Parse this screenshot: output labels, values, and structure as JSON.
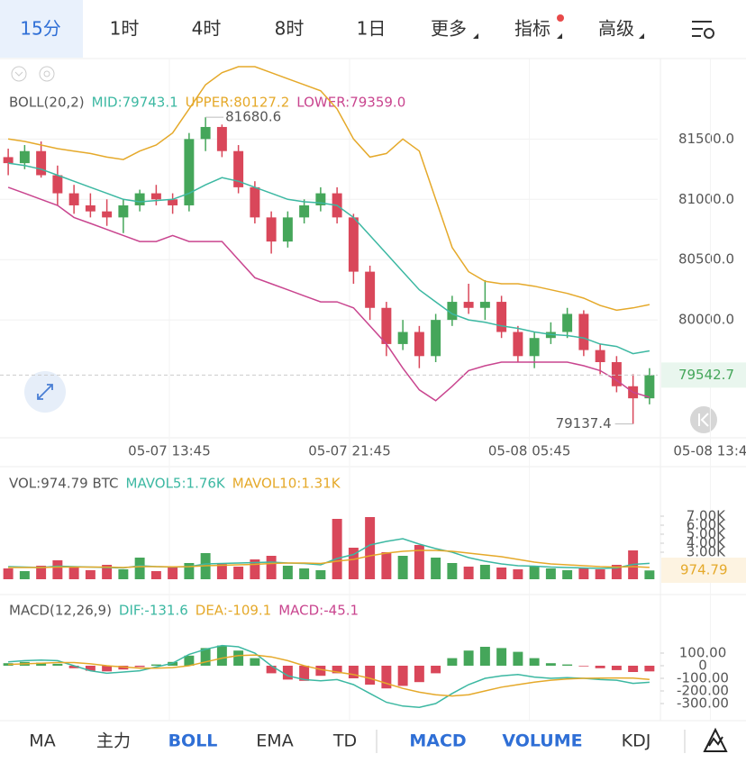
{
  "top_tabs": {
    "items": [
      "15分",
      "1时",
      "4时",
      "8时",
      "1日",
      "更多",
      "指标",
      "高级"
    ],
    "active": 0
  },
  "bottom_tabs": {
    "items": [
      "MA",
      "主力",
      "BOLL",
      "EMA",
      "TD",
      "MACD",
      "VOLUME",
      "KDJ"
    ],
    "active": [
      2,
      5,
      6
    ]
  },
  "chart_data": [
    {
      "type": "candlestick",
      "title": "BOLL(20,2)",
      "up_color": "#45a65a",
      "down_color": "#d9475a",
      "grid": true,
      "ylim": [
        79030,
        82130
      ],
      "yticks": [
        {
          "value": 80000,
          "label": "80000.0"
        },
        {
          "value": 80500,
          "label": "80500.0"
        },
        {
          "value": 81000,
          "label": "81000.0"
        },
        {
          "value": 81500,
          "label": "81500.0"
        }
      ],
      "xticks": [
        {
          "value": 9.8,
          "label": "05-07 13:45"
        },
        {
          "value": 20.76,
          "label": "05-07 21:45"
        },
        {
          "value": 31.7,
          "label": "05-08 05:45"
        },
        {
          "value": 42.7,
          "label": "05-08 13:4"
        }
      ],
      "candles": [
        [
          81350,
          81420,
          81200,
          81300
        ],
        [
          81300,
          81450,
          81250,
          81400
        ],
        [
          81400,
          81480,
          81180,
          81200
        ],
        [
          81200,
          81280,
          80950,
          81050
        ],
        [
          81050,
          81120,
          80880,
          80950
        ],
        [
          80950,
          81050,
          80850,
          80900
        ],
        [
          80900,
          81000,
          80780,
          80850
        ],
        [
          80850,
          81000,
          80720,
          80950
        ],
        [
          80950,
          81080,
          80900,
          81050
        ],
        [
          81050,
          81120,
          80950,
          81000
        ],
        [
          81000,
          81050,
          80880,
          80950
        ],
        [
          80950,
          81550,
          80900,
          81500
        ],
        [
          81500,
          81680.6,
          81400,
          81600
        ],
        [
          81600,
          81620,
          81350,
          81400
        ],
        [
          81400,
          81450,
          81050,
          81100
        ],
        [
          81100,
          81150,
          80800,
          80850
        ],
        [
          80850,
          80900,
          80550,
          80650
        ],
        [
          80650,
          80900,
          80600,
          80850
        ],
        [
          80850,
          81000,
          80800,
          80950
        ],
        [
          80950,
          81100,
          80900,
          81050
        ],
        [
          81050,
          81100,
          80800,
          80850
        ],
        [
          80850,
          80880,
          80300,
          80400
        ],
        [
          80400,
          80450,
          80000,
          80100
        ],
        [
          80100,
          80150,
          79700,
          79800
        ],
        [
          79800,
          80000,
          79750,
          79900
        ],
        [
          79900,
          79950,
          79600,
          79700
        ],
        [
          79700,
          80050,
          79650,
          80000
        ],
        [
          80000,
          80200,
          79950,
          80150
        ],
        [
          80150,
          80300,
          80050,
          80100
        ],
        [
          80100,
          80330,
          80000,
          80150
        ],
        [
          80150,
          80200,
          79850,
          79900
        ],
        [
          79900,
          79950,
          79650,
          79700
        ],
        [
          79700,
          79900,
          79600,
          79850
        ],
        [
          79850,
          79980,
          79800,
          79900
        ],
        [
          79900,
          80100,
          79850,
          80050
        ],
        [
          80050,
          80080,
          79700,
          79750
        ],
        [
          79750,
          79800,
          79550,
          79650
        ],
        [
          79650,
          79700,
          79400,
          79450
        ],
        [
          79450,
          79550,
          79137.4,
          79350
        ],
        [
          79350,
          79600,
          79300,
          79542.7
        ]
      ],
      "series": [
        {
          "name": "MID:79743.1",
          "color": "#3cb8a2",
          "values": [
            81300,
            81280,
            81250,
            81200,
            81150,
            81100,
            81050,
            81000,
            80980,
            80990,
            81000,
            81050,
            81120,
            81180,
            81150,
            81100,
            81050,
            81000,
            80980,
            80970,
            80950,
            80850,
            80700,
            80550,
            80400,
            80250,
            80150,
            80050,
            80000,
            79980,
            79950,
            79930,
            79900,
            79880,
            79870,
            79850,
            79800,
            79780,
            79720,
            79743.1
          ]
        },
        {
          "name": "UPPER:80127.2",
          "color": "#e5a92a",
          "values": [
            81500,
            81480,
            81450,
            81420,
            81400,
            81380,
            81350,
            81330,
            81400,
            81450,
            81550,
            81750,
            81950,
            82050,
            82100,
            82100,
            82050,
            82000,
            81950,
            81900,
            81750,
            81500,
            81350,
            81380,
            81500,
            81400,
            81000,
            80600,
            80400,
            80320,
            80300,
            80300,
            80280,
            80250,
            80220,
            80180,
            80120,
            80080,
            80100,
            80127.2
          ]
        },
        {
          "name": "LOWER:79359.0",
          "color": "#c9458f",
          "values": [
            81100,
            81050,
            81000,
            80950,
            80850,
            80800,
            80750,
            80700,
            80650,
            80650,
            80700,
            80650,
            80650,
            80650,
            80500,
            80350,
            80300,
            80250,
            80200,
            80150,
            80150,
            80100,
            79950,
            79800,
            79600,
            79420,
            79330,
            79450,
            79580,
            79620,
            79650,
            79650,
            79650,
            79650,
            79650,
            79620,
            79580,
            79500,
            79400,
            79359
          ]
        }
      ]
    },
    {
      "type": "bar",
      "title": "VOL:974.79 BTC",
      "ylim": [
        0,
        8000
      ],
      "yticks": [
        {
          "value": 3000,
          "label": "3.00K"
        },
        {
          "value": 4000,
          "label": "4.00K"
        },
        {
          "value": 5000,
          "label": "5.00K"
        },
        {
          "value": 6000,
          "label": "6.00K"
        },
        {
          "value": 7000,
          "label": "7.00K"
        }
      ],
      "values": [
        1200,
        900,
        1500,
        2100,
        1300,
        1000,
        1600,
        1100,
        2400,
        900,
        1300,
        1800,
        2900,
        1700,
        1400,
        2200,
        2600,
        1500,
        1200,
        1000,
        6700,
        3500,
        6900,
        3000,
        2600,
        3800,
        2400,
        1800,
        1400,
        1600,
        1300,
        1100,
        1500,
        1200,
        1000,
        1300,
        1100,
        1600,
        3200,
        974.79
      ],
      "series": [
        {
          "name": "MAVOL5:1.76K",
          "color": "#3cb8a2",
          "values": [
            1400,
            1350,
            1300,
            1450,
            1400,
            1350,
            1300,
            1250,
            1500,
            1400,
            1350,
            1400,
            1700,
            1750,
            1800,
            1850,
            1900,
            1800,
            1750,
            1600,
            2300,
            2750,
            3800,
            4200,
            4500,
            3900,
            3400,
            3000,
            2400,
            2000,
            1700,
            1500,
            1450,
            1350,
            1300,
            1250,
            1200,
            1250,
            1650,
            1760
          ]
        },
        {
          "name": "MAVOL10:1.31K",
          "color": "#e5a92a",
          "values": [
            1300,
            1300,
            1300,
            1350,
            1350,
            1350,
            1350,
            1300,
            1400,
            1400,
            1380,
            1400,
            1500,
            1550,
            1600,
            1650,
            1750,
            1800,
            1800,
            1750,
            2000,
            2200,
            2600,
            2900,
            3100,
            3200,
            3200,
            3100,
            2900,
            2700,
            2500,
            2200,
            1900,
            1700,
            1600,
            1500,
            1400,
            1350,
            1400,
            1310
          ]
        }
      ]
    },
    {
      "type": "bar",
      "title": "MACD(12,26,9)",
      "ylim": [
        -400,
        350
      ],
      "yticks": [
        {
          "value": 100,
          "label": "100.00"
        },
        0,
        {
          "value": -100,
          "label": "-100.00"
        },
        {
          "value": -200,
          "label": "-200.00"
        },
        {
          "value": -300,
          "label": "-300.00"
        }
      ],
      "series": [
        {
          "name": "DIF:-131.6",
          "color": "#3cb8a2",
          "values": [
            30,
            40,
            45,
            40,
            0,
            -40,
            -60,
            -50,
            -40,
            -10,
            20,
            90,
            130,
            160,
            150,
            100,
            0,
            -80,
            -110,
            -120,
            -110,
            -150,
            -220,
            -290,
            -320,
            -330,
            -300,
            -220,
            -150,
            -100,
            -80,
            -70,
            -90,
            -100,
            -95,
            -100,
            -110,
            -115,
            -140,
            -131.6
          ]
        },
        {
          "name": "DEA:-109.1",
          "color": "#e5a92a",
          "values": [
            10,
            15,
            20,
            25,
            25,
            15,
            0,
            -10,
            -20,
            -20,
            -15,
            0,
            30,
            60,
            80,
            85,
            70,
            40,
            0,
            -30,
            -50,
            -70,
            -100,
            -140,
            -180,
            -210,
            -230,
            -240,
            -230,
            -200,
            -170,
            -150,
            -130,
            -115,
            -105,
            -100,
            -98,
            -97,
            -98,
            -109.1
          ]
        },
        {
          "name": "MACD:-45.1",
          "color": "#c9458f",
          "type": "bar",
          "up_color": "#45a65a",
          "down_color": "#d9475a",
          "values": [
            20,
            30,
            25,
            15,
            -20,
            -40,
            -45,
            -30,
            -10,
            10,
            30,
            80,
            140,
            160,
            120,
            60,
            -60,
            -110,
            -120,
            -80,
            -60,
            -100,
            -150,
            -180,
            -160,
            -130,
            -60,
            60,
            120,
            150,
            140,
            110,
            60,
            20,
            10,
            -5,
            -20,
            -35,
            -50,
            -45.1
          ]
        }
      ]
    }
  ]
}
